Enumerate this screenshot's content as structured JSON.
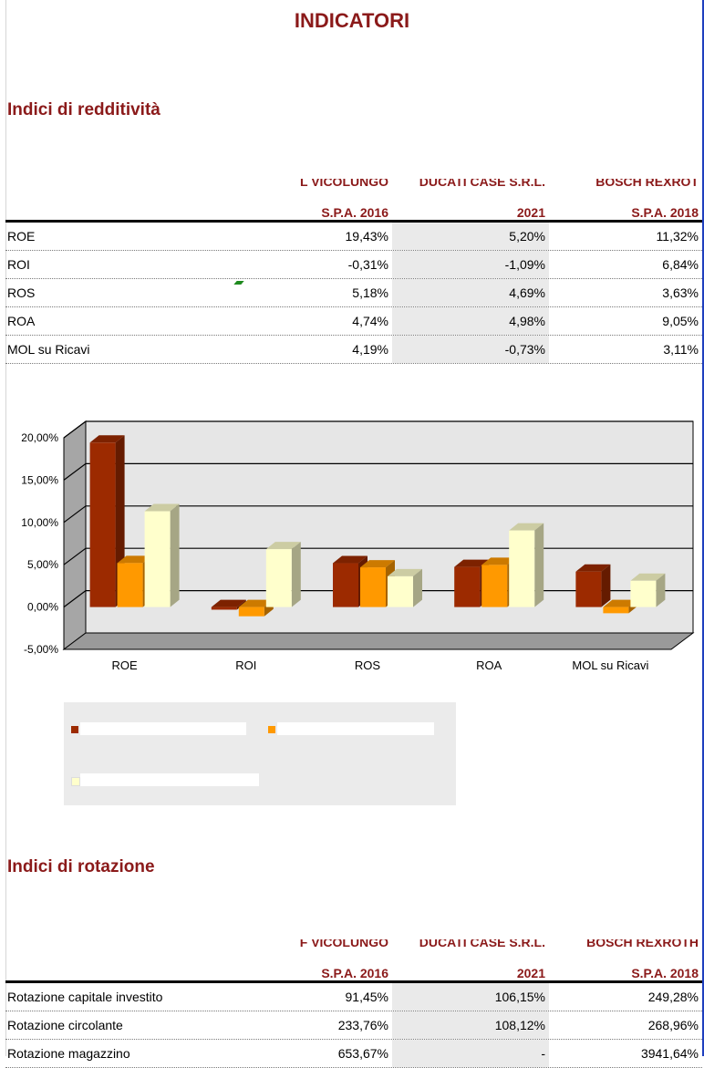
{
  "page": {
    "title": "INDICATORI"
  },
  "redditivita": {
    "section_title": "Indici di redditività",
    "columns": [
      {
        "truncated_name": "L VICOLUNGO",
        "label": "S.P.A. 2016"
      },
      {
        "truncated_name": "DUCATI CASE S.R.L.",
        "label": "2021"
      },
      {
        "truncated_name": "BOSCH REXROT",
        "label": "S.P.A. 2018"
      }
    ],
    "rows": [
      {
        "name": "ROE",
        "values": [
          "19,43%",
          "5,20%",
          "11,32%"
        ]
      },
      {
        "name": "ROI",
        "values": [
          "-0,31%",
          "-1,09%",
          "6,84%"
        ]
      },
      {
        "name": "ROS",
        "values": [
          "5,18%",
          "4,69%",
          "3,63%"
        ]
      },
      {
        "name": "ROA",
        "values": [
          "4,74%",
          "4,98%",
          "9,05%"
        ]
      },
      {
        "name": "MOL su Ricavi",
        "values": [
          "4,19%",
          "-0,73%",
          "3,11%"
        ]
      }
    ]
  },
  "chart_data": {
    "type": "bar",
    "categories": [
      "ROE",
      "ROI",
      "ROS",
      "ROA",
      "MOL su Ricavi"
    ],
    "series": [
      {
        "values": [
          19.43,
          -0.31,
          5.18,
          4.74,
          4.19
        ],
        "color": "#9c2a00"
      },
      {
        "values": [
          5.2,
          -1.09,
          4.69,
          4.98,
          -0.73
        ],
        "color": "#ff9900"
      },
      {
        "values": [
          11.32,
          6.84,
          3.63,
          9.05,
          3.11
        ],
        "color": "#ffffcc"
      }
    ],
    "ylim": [
      -5,
      20
    ],
    "yticks": [
      "20,00%",
      "15,00%",
      "10,00%",
      "5,00%",
      "0,00%",
      "-5,00%"
    ],
    "ytick_values": [
      20,
      15,
      10,
      5,
      0,
      -5
    ],
    "grid": true,
    "three_d": true,
    "legend_position": "bottom-left"
  },
  "rotazione": {
    "section_title": "Indici di rotazione",
    "columns": [
      {
        "truncated_name": "F VICOLUNGO",
        "label": "S.P.A. 2016"
      },
      {
        "truncated_name": "DUCATI CASE S.R.L.",
        "label": "2021"
      },
      {
        "truncated_name": "BOSCH REXROTH",
        "label": "S.P.A. 2018"
      }
    ],
    "rows": [
      {
        "name": "Rotazione capitale investito",
        "values": [
          "91,45%",
          "106,15%",
          "249,28%"
        ]
      },
      {
        "name": "Rotazione circolante",
        "values": [
          "233,76%",
          "108,12%",
          "268,96%"
        ]
      },
      {
        "name": "Rotazione magazzino",
        "values": [
          "653,67%",
          "-",
          "3941,64%"
        ]
      }
    ]
  }
}
